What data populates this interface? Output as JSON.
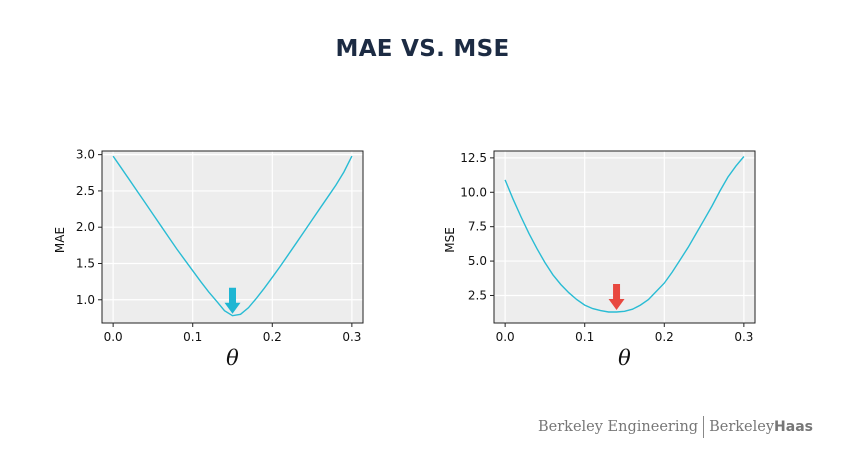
{
  "title": "MAE VS. MSE",
  "footer": {
    "brand1": "Berkeley Engineering",
    "brand2_a": "Berkeley",
    "brand2_b": "Haas"
  },
  "chart_data": [
    {
      "type": "line",
      "title": "",
      "xlabel": "θ",
      "ylabel": "MAE",
      "xlim": [
        -0.014,
        0.314
      ],
      "ylim": [
        0.68,
        3.05
      ],
      "xticks": [
        0.0,
        0.1,
        0.2,
        0.3
      ],
      "xtick_labels": [
        "0.0",
        "0.1",
        "0.2",
        "0.3"
      ],
      "yticks": [
        1.0,
        1.5,
        2.0,
        2.5,
        3.0
      ],
      "ytick_labels": [
        "1.0",
        "1.5",
        "2.0",
        "2.5",
        "3.0"
      ],
      "grid": true,
      "line_color": "#29bcd4",
      "marker": {
        "x": 0.15,
        "y": 0.78,
        "color": "#1fb6d3",
        "shape": "down-arrow"
      },
      "series": [
        {
          "x": [
            0.0,
            0.01,
            0.02,
            0.03,
            0.04,
            0.05,
            0.06,
            0.07,
            0.08,
            0.09,
            0.1,
            0.11,
            0.12,
            0.13,
            0.14,
            0.15,
            0.16,
            0.17,
            0.18,
            0.19,
            0.2,
            0.21,
            0.22,
            0.23,
            0.24,
            0.25,
            0.26,
            0.27,
            0.28,
            0.29,
            0.3
          ],
          "values": [
            2.98,
            2.82,
            2.66,
            2.5,
            2.34,
            2.18,
            2.02,
            1.86,
            1.7,
            1.55,
            1.4,
            1.25,
            1.11,
            0.98,
            0.85,
            0.78,
            0.8,
            0.89,
            1.02,
            1.16,
            1.31,
            1.46,
            1.62,
            1.78,
            1.94,
            2.1,
            2.26,
            2.42,
            2.58,
            2.76,
            2.98
          ]
        }
      ]
    },
    {
      "type": "line",
      "title": "",
      "xlabel": "θ",
      "ylabel": "MSE",
      "xlim": [
        -0.014,
        0.314
      ],
      "ylim": [
        0.5,
        13.0
      ],
      "xticks": [
        0.0,
        0.1,
        0.2,
        0.3
      ],
      "xtick_labels": [
        "0.0",
        "0.1",
        "0.2",
        "0.3"
      ],
      "yticks": [
        2.5,
        5.0,
        7.5,
        10.0,
        12.5
      ],
      "ytick_labels": [
        "2.5",
        "5.0",
        "7.5",
        "10.0",
        "12.5"
      ],
      "grid": true,
      "line_color": "#29bcd4",
      "marker": {
        "x": 0.14,
        "y": 1.3,
        "color": "#e8483f",
        "shape": "down-arrow"
      },
      "series": [
        {
          "x": [
            0.0,
            0.01,
            0.02,
            0.03,
            0.04,
            0.05,
            0.06,
            0.07,
            0.08,
            0.09,
            0.1,
            0.11,
            0.12,
            0.13,
            0.14,
            0.15,
            0.16,
            0.17,
            0.18,
            0.19,
            0.2,
            0.21,
            0.22,
            0.23,
            0.24,
            0.25,
            0.26,
            0.27,
            0.28,
            0.29,
            0.3
          ],
          "values": [
            10.9,
            9.5,
            8.2,
            7.0,
            5.9,
            4.9,
            4.0,
            3.3,
            2.7,
            2.2,
            1.8,
            1.55,
            1.4,
            1.3,
            1.3,
            1.35,
            1.5,
            1.8,
            2.2,
            2.8,
            3.4,
            4.2,
            5.1,
            6.0,
            7.0,
            8.0,
            9.0,
            10.1,
            11.1,
            11.9,
            12.6
          ]
        }
      ]
    }
  ]
}
